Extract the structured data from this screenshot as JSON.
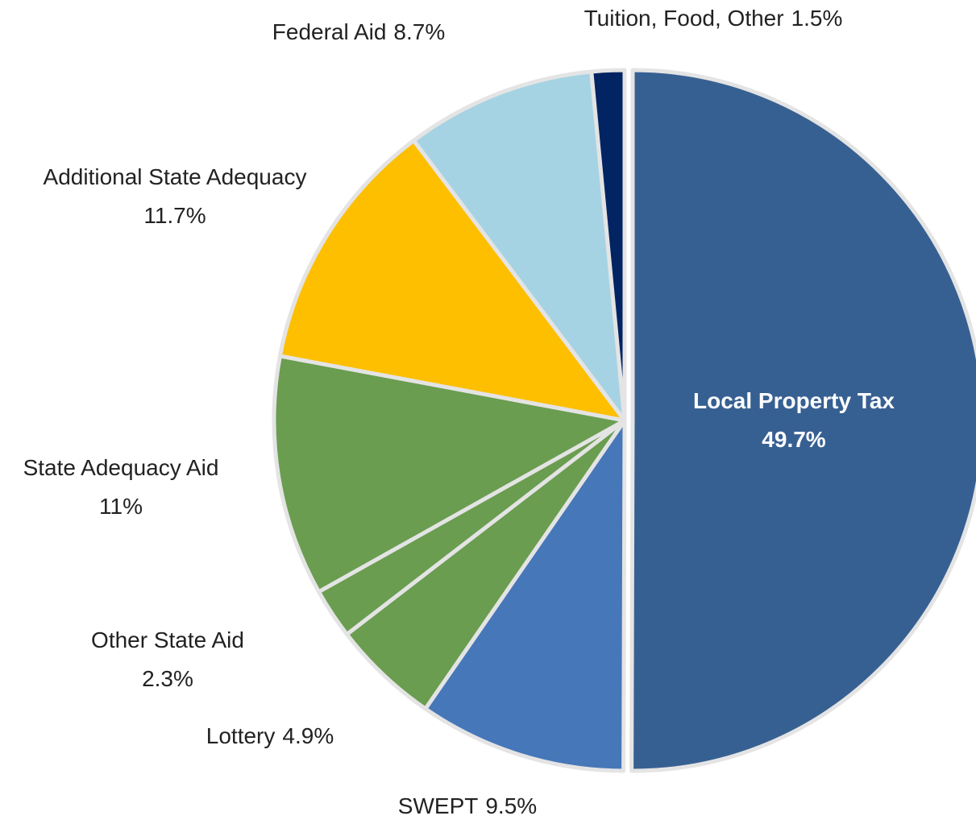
{
  "chart_data": {
    "type": "pie",
    "categories": [
      "Local Property Tax",
      "SWEPT",
      "Lottery",
      "Other State Aid",
      "State Adequacy Aid",
      "Additional State Adequacy",
      "Federal Aid",
      "Tuition, Food, Other"
    ],
    "values": [
      49.7,
      9.5,
      4.9,
      2.3,
      11,
      11.7,
      8.7,
      1.5
    ],
    "value_labels": [
      "49.7%",
      "9.5%",
      "4.9%",
      "2.3%",
      "11%",
      "11.7%",
      "8.7%",
      "1.5%"
    ],
    "colors": [
      "#376092",
      "#4677b8",
      "#6a9d50",
      "#6a9d50",
      "#6a9d50",
      "#fdbf00",
      "#a6d3e3",
      "#022462"
    ]
  }
}
